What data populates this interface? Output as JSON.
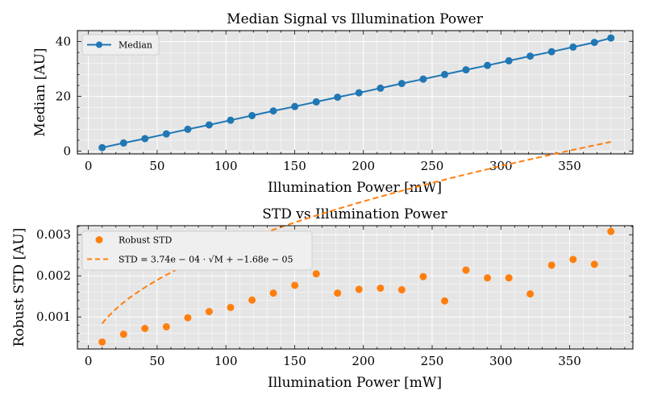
{
  "chart_data": [
    {
      "type": "line",
      "title": "Median Signal vs Illumination Power",
      "xlabel": "Illumination Power [mW]",
      "ylabel": "Median [AU]",
      "xlim": [
        -8,
        396
      ],
      "ylim": [
        -1,
        44
      ],
      "xticks": [
        "0",
        "50",
        "100",
        "150",
        "200",
        "250",
        "300",
        "350"
      ],
      "yticks": [
        "0",
        "20",
        "40"
      ],
      "grid": true,
      "legend_position": "upper-left",
      "color": "#1f77b4",
      "series": [
        {
          "name": "Median",
          "x": [
            10,
            25.6,
            41.1,
            56.7,
            72.3,
            87.8,
            103.4,
            119,
            134.5,
            150.1,
            165.7,
            181.2,
            196.8,
            212.4,
            227.9,
            243.5,
            259.1,
            274.6,
            290.2,
            305.8,
            321.3,
            336.9,
            352.5,
            368,
            380
          ],
          "y": [
            1.3,
            3.0,
            4.6,
            6.3,
            8.0,
            9.6,
            11.3,
            13.0,
            14.7,
            16.3,
            18.0,
            19.7,
            21.3,
            23.0,
            24.7,
            26.3,
            28.0,
            29.7,
            31.3,
            33.0,
            34.7,
            36.3,
            38.0,
            39.7,
            41.3
          ]
        }
      ]
    },
    {
      "type": "scatter",
      "title": "STD vs Illumination Power",
      "xlabel": "Illumination Power [mW]",
      "ylabel": "Robust STD [AU]",
      "xlim": [
        -8,
        396
      ],
      "ylim": [
        0.00022,
        0.00322
      ],
      "xticks": [
        "0",
        "50",
        "100",
        "150",
        "200",
        "250",
        "300",
        "350"
      ],
      "yticks": [
        "0.001",
        "0.002",
        "0.003"
      ],
      "grid": true,
      "legend_position": "upper-left",
      "color": "#ff7f0e",
      "series": [
        {
          "name": "Robust STD",
          "x": [
            10,
            25.6,
            41.1,
            56.7,
            72.3,
            87.8,
            103.4,
            119,
            134.5,
            150.1,
            165.7,
            181.2,
            196.8,
            212.4,
            227.9,
            243.5,
            259.1,
            274.6,
            290.2,
            305.8,
            321.3,
            336.9,
            352.5,
            368,
            380
          ],
          "y": [
            0.00039,
            0.00058,
            0.00072,
            0.00076,
            0.00098,
            0.00113,
            0.00123,
            0.00141,
            0.00158,
            0.00177,
            0.00205,
            0.00158,
            0.00167,
            0.0017,
            0.00166,
            0.00198,
            0.00139,
            0.00214,
            0.00195,
            0.00195,
            0.00156,
            0.00226,
            0.0024,
            0.00228,
            0.00308
          ]
        }
      ],
      "fit": {
        "label_main": "STD = 3.74e − 04 · ",
        "label_sqrt": "√M",
        "label_tail": " + −1.68e − 05",
        "a": 0.000374,
        "b": -1.68e-05,
        "x_scale": 1.91,
        "x_range": [
          10,
          380
        ]
      }
    }
  ]
}
